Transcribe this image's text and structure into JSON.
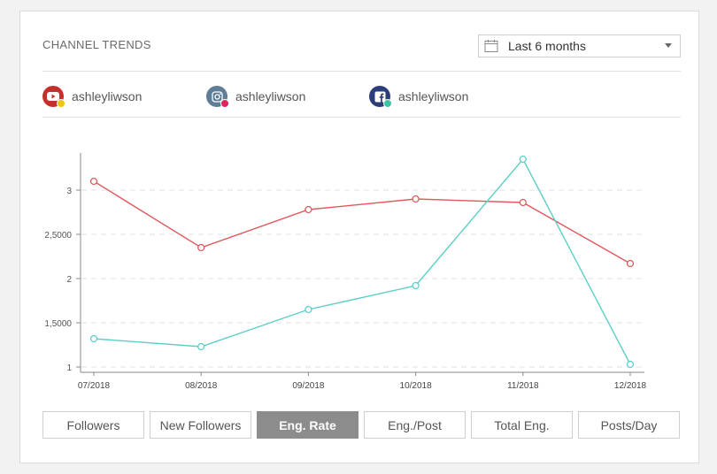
{
  "header": {
    "title": "CHANNEL TRENDS"
  },
  "range_select": {
    "value": "Last 6 months",
    "icon": "calendar-icon"
  },
  "channels": [
    {
      "name": "ashleyliwson",
      "network": "youtube",
      "icon_color": "#c4302b",
      "dot_color": "#f1c40f"
    },
    {
      "name": "ashleyliwson",
      "network": "instagram",
      "icon_color": "#5f7d95",
      "dot_color": "#e0245e"
    },
    {
      "name": "ashleyliwson",
      "network": "facebook",
      "icon_color": "#2c3e7a",
      "dot_color": "#3cc6a0"
    }
  ],
  "chart_data": {
    "type": "line",
    "categories": [
      "07/2018",
      "08/2018",
      "09/2018",
      "10/2018",
      "11/2018",
      "12/2018"
    ],
    "series": [
      {
        "values": [
          3.1,
          2.35,
          2.78,
          2.9,
          2.86,
          2.17
        ],
        "color": "#e0595e"
      },
      {
        "values": [
          1.32,
          1.23,
          1.65,
          1.92,
          3.35,
          1.03
        ],
        "color": "#5ccfc7"
      }
    ],
    "yticks": [
      {
        "value": 1,
        "label": "1"
      },
      {
        "value": 1.5,
        "label": "1,5000"
      },
      {
        "value": 2,
        "label": "2"
      },
      {
        "value": 2.5,
        "label": "2,5000"
      },
      {
        "value": 3,
        "label": "3"
      }
    ],
    "ylim": [
      0.94,
      3.42
    ],
    "grid": true
  },
  "tabs": [
    {
      "label": "Followers",
      "active": false
    },
    {
      "label": "New Followers",
      "active": false
    },
    {
      "label": "Eng. Rate",
      "active": true
    },
    {
      "label": "Eng./Post",
      "active": false
    },
    {
      "label": "Total Eng.",
      "active": false
    },
    {
      "label": "Posts/Day",
      "active": false
    }
  ]
}
